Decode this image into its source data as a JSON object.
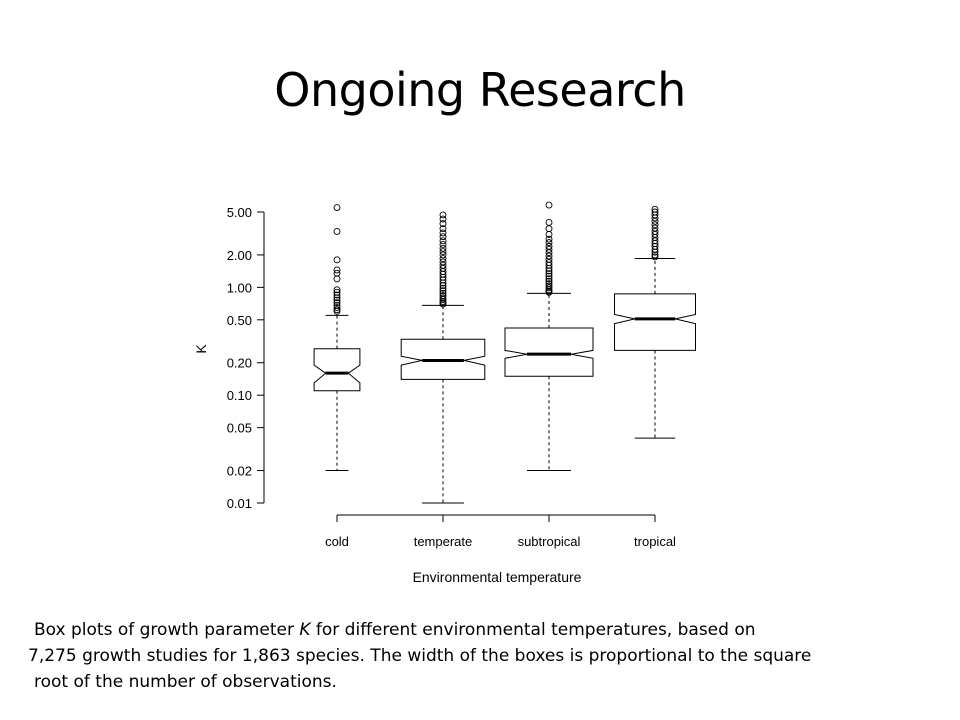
{
  "slide": {
    "title": "Ongoing Research"
  },
  "caption": {
    "line1_pre": "Box plots of growth parameter ",
    "line1_var": "K",
    "line1_post": " for different environmental temperatures, based on",
    "line2": "7,275 growth studies for 1,863 species. The width of the boxes is proportional to the square",
    "line3": "root of the number of observations."
  },
  "chart_data": {
    "type": "boxplot",
    "notched": true,
    "xlabel": "Environmental temperature",
    "ylabel": "K",
    "yscale": "log",
    "ylim": [
      0.01,
      6
    ],
    "yticks": [
      {
        "value": 5.0,
        "label": "5.00"
      },
      {
        "value": 2.0,
        "label": "2.00"
      },
      {
        "value": 1.0,
        "label": "1.00"
      },
      {
        "value": 0.5,
        "label": "0.50"
      },
      {
        "value": 0.2,
        "label": "0.20"
      },
      {
        "value": 0.1,
        "label": "0.10"
      },
      {
        "value": 0.05,
        "label": "0.05"
      },
      {
        "value": 0.02,
        "label": "0.02"
      },
      {
        "value": 0.01,
        "label": "0.01"
      }
    ],
    "categories": [
      "cold",
      "temperate",
      "subtropical",
      "tropical"
    ],
    "boxes": [
      {
        "category": "cold",
        "width_rel": 0.52,
        "whisker_low": 0.02,
        "q1": 0.11,
        "median": 0.16,
        "q3": 0.27,
        "notch_low": 0.13,
        "notch_high": 0.19,
        "whisker_high": 0.55,
        "outliers": [
          5.5,
          3.3,
          1.8,
          1.45,
          1.35,
          1.2,
          0.95,
          0.9,
          0.85,
          0.8,
          0.76,
          0.72,
          0.68,
          0.65,
          0.62,
          0.6
        ]
      },
      {
        "category": "temperate",
        "width_rel": 0.95,
        "whisker_low": 0.01,
        "q1": 0.14,
        "median": 0.21,
        "q3": 0.33,
        "notch_low": 0.19,
        "notch_high": 0.23,
        "whisker_high": 0.68,
        "outliers": [
          4.7,
          4.3,
          3.9,
          3.5,
          3.2,
          2.95,
          2.7,
          2.5,
          2.3,
          2.15,
          2.0,
          1.85,
          1.72,
          1.6,
          1.5,
          1.4,
          1.32,
          1.24,
          1.17,
          1.1,
          1.04,
          0.98,
          0.93,
          0.88,
          0.84,
          0.8,
          0.77,
          0.74,
          0.72,
          0.7
        ]
      },
      {
        "category": "subtropical",
        "width_rel": 1.0,
        "whisker_low": 0.02,
        "q1": 0.15,
        "median": 0.24,
        "q3": 0.42,
        "notch_low": 0.22,
        "notch_high": 0.26,
        "whisker_high": 0.88,
        "outliers": [
          5.8,
          4.0,
          3.5,
          3.1,
          2.8,
          2.6,
          2.4,
          2.25,
          2.1,
          1.95,
          1.82,
          1.7,
          1.6,
          1.5,
          1.42,
          1.34,
          1.27,
          1.2,
          1.14,
          1.08,
          1.03,
          0.99,
          0.95,
          0.92,
          0.9
        ]
      },
      {
        "category": "tropical",
        "width_rel": 0.92,
        "whisker_low": 0.04,
        "q1": 0.26,
        "median": 0.51,
        "q3": 0.87,
        "notch_low": 0.46,
        "notch_high": 0.56,
        "whisker_high": 1.85,
        "outliers": [
          5.3,
          5.0,
          4.7,
          4.4,
          4.1,
          3.8,
          3.55,
          3.3,
          3.1,
          2.9,
          2.7,
          2.55,
          2.4,
          2.25,
          2.12,
          2.0,
          1.92
        ]
      }
    ]
  }
}
